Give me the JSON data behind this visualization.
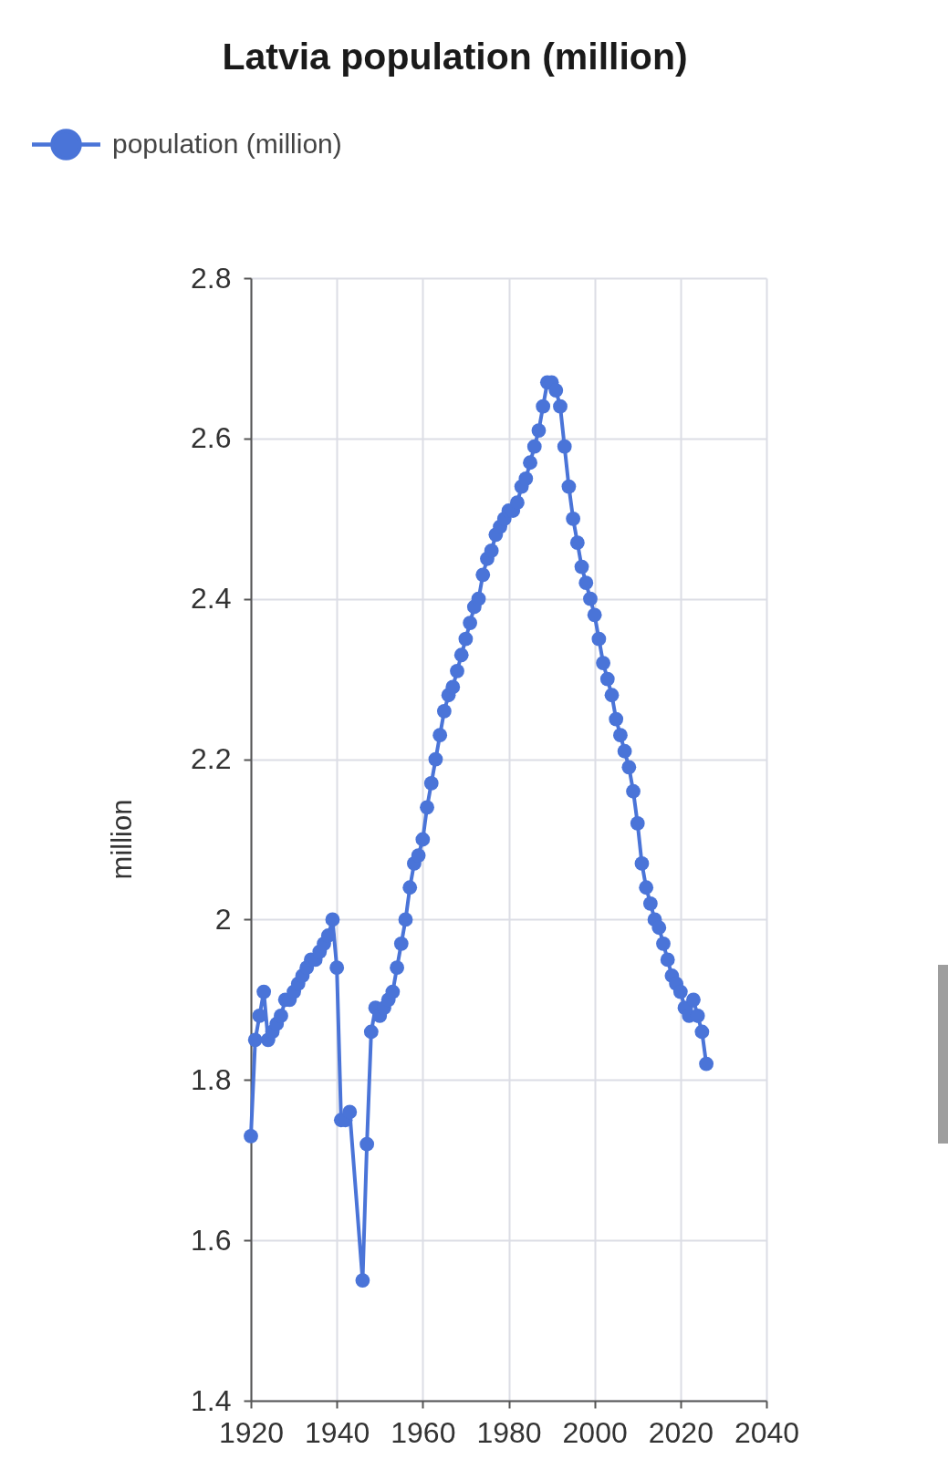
{
  "chart_data": {
    "type": "line",
    "title": "Latvia population (million)",
    "ylabel": "million",
    "x": [
      1920,
      1921,
      1922,
      1923,
      1924,
      1925,
      1926,
      1927,
      1928,
      1929,
      1930,
      1931,
      1932,
      1933,
      1934,
      1935,
      1936,
      1937,
      1938,
      1939,
      1940,
      1941,
      1942,
      1943,
      1946,
      1947,
      1948,
      1949,
      1950,
      1951,
      1952,
      1953,
      1954,
      1955,
      1956,
      1957,
      1958,
      1959,
      1960,
      1961,
      1962,
      1963,
      1964,
      1965,
      1966,
      1967,
      1968,
      1969,
      1970,
      1971,
      1972,
      1973,
      1974,
      1975,
      1976,
      1977,
      1978,
      1979,
      1980,
      1981,
      1982,
      1983,
      1984,
      1985,
      1986,
      1987,
      1988,
      1989,
      1990,
      1991,
      1992,
      1993,
      1994,
      1995,
      1996,
      1997,
      1998,
      1999,
      2000,
      2001,
      2002,
      2003,
      2004,
      2005,
      2006,
      2007,
      2008,
      2009,
      2010,
      2011,
      2012,
      2013,
      2014,
      2015,
      2016,
      2017,
      2018,
      2019,
      2020,
      2021,
      2022,
      2023,
      2024,
      2025,
      2026
    ],
    "series": [
      {
        "name": "population (million)",
        "color": "#4a74d8",
        "values": [
          1.73,
          1.85,
          1.88,
          1.91,
          1.85,
          1.86,
          1.87,
          1.88,
          1.9,
          1.9,
          1.91,
          1.92,
          1.93,
          1.94,
          1.95,
          1.95,
          1.96,
          1.97,
          1.98,
          2.0,
          1.94,
          1.75,
          1.75,
          1.76,
          1.55,
          1.72,
          1.86,
          1.89,
          1.88,
          1.89,
          1.9,
          1.91,
          1.94,
          1.97,
          2.0,
          2.04,
          2.07,
          2.08,
          2.1,
          2.14,
          2.17,
          2.2,
          2.23,
          2.26,
          2.28,
          2.29,
          2.31,
          2.33,
          2.35,
          2.37,
          2.39,
          2.4,
          2.43,
          2.45,
          2.46,
          2.48,
          2.49,
          2.5,
          2.51,
          2.51,
          2.52,
          2.54,
          2.55,
          2.57,
          2.59,
          2.61,
          2.64,
          2.67,
          2.67,
          2.66,
          2.64,
          2.59,
          2.54,
          2.5,
          2.47,
          2.44,
          2.42,
          2.4,
          2.38,
          2.35,
          2.32,
          2.3,
          2.28,
          2.25,
          2.23,
          2.21,
          2.19,
          2.16,
          2.12,
          2.07,
          2.04,
          2.02,
          2.0,
          1.99,
          1.97,
          1.95,
          1.93,
          1.92,
          1.91,
          1.89,
          1.88,
          1.9,
          1.88,
          1.86,
          1.82
        ]
      }
    ],
    "xlim": [
      1920,
      2040
    ],
    "ylim": [
      1.4,
      2.8
    ],
    "xticks": [
      1920,
      1940,
      1960,
      1980,
      2000,
      2020,
      2040
    ],
    "yticks": [
      1.4,
      1.6,
      1.8,
      2,
      2.2,
      2.4,
      2.6,
      2.8
    ],
    "grid": true,
    "legend": "top left",
    "marker": "circle",
    "line_style": "solid"
  }
}
